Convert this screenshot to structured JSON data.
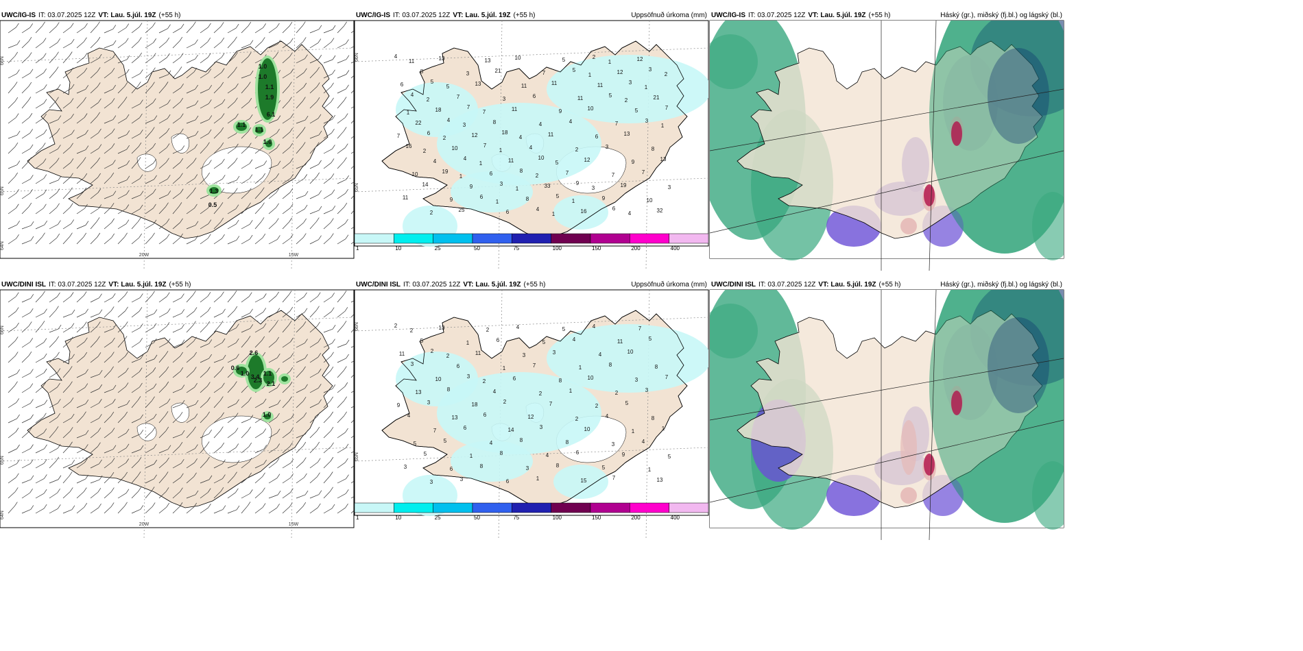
{
  "panels": [
    {
      "model": "UWC/IG-IS",
      "it": "IT: 03.07.2025 12Z",
      "vt_label": "VT:",
      "vt": "Lau. 5.júl. 19Z",
      "lead": "(+55 h)",
      "right_title": "",
      "kind": "wind",
      "lat_labels": [
        "66N",
        "65N",
        "64N"
      ],
      "lon_labels": [
        "20W",
        "15W"
      ],
      "precip_values": [
        "1.0",
        "1.0",
        "1.1",
        "1.9",
        "6.1",
        "1.1",
        "1.1",
        "1.0",
        "1.3",
        "0.5"
      ]
    },
    {
      "model": "UWC/IG-IS",
      "it": "IT: 03.07.2025 12Z",
      "vt_label": "VT:",
      "vt": "Lau. 5.júl. 19Z",
      "lead": "(+55 h)",
      "right_title": "Uppsöfnuð úrkoma (mm)",
      "kind": "precip",
      "lat_labels": [
        "66N",
        "65N"
      ],
      "lon_labels": [],
      "precip_values": [
        "4",
        "5",
        "7",
        "18",
        "10",
        "9",
        "6",
        "3",
        "4",
        "4",
        "7",
        "8",
        "5",
        "2",
        "3",
        "7",
        "6",
        "4",
        "3",
        "4",
        "5",
        "5",
        "3",
        "16",
        "19",
        "6",
        "10",
        "11",
        "10",
        "13",
        "13",
        "14",
        "25",
        "21",
        "6",
        "4",
        "3",
        "7",
        "11",
        "13",
        "13",
        "11",
        "11",
        "12",
        "19",
        "32",
        "8",
        "7",
        "8",
        "4",
        "7",
        "9",
        "12",
        "6",
        "18",
        "12",
        "11",
        "33",
        "16",
        "12",
        "21",
        "22",
        "10",
        "6",
        "8",
        "5",
        "11",
        "5",
        "7",
        "4",
        "9",
        "6",
        "7",
        "11",
        "7",
        "8",
        "10",
        "9",
        "13",
        "11",
        "9",
        "6",
        "9",
        "3",
        "2",
        "3",
        "3",
        "4",
        "2",
        "7",
        "10",
        "11",
        "5",
        "7",
        "4",
        "5",
        "3",
        "4",
        "2",
        "2",
        "3",
        "1",
        "2",
        "1",
        "1",
        "1",
        "1",
        "2",
        "1",
        "1",
        "1",
        "1",
        "2",
        "1",
        "2",
        "1",
        "1"
      ]
    },
    {
      "model": "UWC/IG-IS",
      "it": "IT: 03.07.2025 12Z",
      "vt_label": "VT:",
      "vt": "Lau. 5.júl. 19Z",
      "lead": "(+55 h)",
      "right_title": "Háský (gr.), miðský (fj.bl.) og lágský (bl.)",
      "kind": "cloud",
      "lat_labels": [],
      "lon_labels": [],
      "precip_values": []
    },
    {
      "model": "UWC/DINI ISL",
      "it": "IT: 03.07.2025 12Z",
      "vt_label": "VT:",
      "vt": "Lau. 5.júl. 19Z",
      "lead": "(+55 h)",
      "right_title": "",
      "kind": "wind",
      "lat_labels": [
        "66N",
        "65N",
        "64N"
      ],
      "lon_labels": [
        "20W",
        "15W"
      ],
      "precip_values": [
        "2.6",
        "0.6",
        "1.0",
        "3.4",
        "1.1",
        "2.3",
        "2.1",
        "1.0"
      ]
    },
    {
      "model": "UWC/DINI ISL",
      "it": "IT: 03.07.2025 12Z",
      "vt_label": "VT:",
      "vt": "Lau. 5.júl. 19Z",
      "lead": "(+55 h)",
      "right_title": "Uppsöfnuð úrkoma (mm)",
      "kind": "precip",
      "lat_labels": [
        "66N",
        "65N"
      ],
      "lon_labels": [],
      "precip_values": [
        "2",
        "2",
        "3",
        "2",
        "3",
        "6",
        "7",
        "5",
        "3",
        "8",
        "6",
        "8",
        "8",
        "4",
        "10",
        "7",
        "3",
        "6",
        "8",
        "1",
        "4",
        "8",
        "3",
        "4",
        "5",
        "8",
        "4",
        "3",
        "10",
        "5",
        "1",
        "5",
        "3",
        "6",
        "7",
        "1",
        "4",
        "4",
        "3",
        "13",
        "11",
        "6",
        "7",
        "10",
        "9",
        "13",
        "5",
        "6",
        "4",
        "12",
        "8",
        "5",
        "7",
        "11",
        "10",
        "18",
        "14",
        "4",
        "15",
        "11",
        "8",
        "13",
        "13",
        "4",
        "3",
        "5",
        "4",
        "3",
        "9",
        "7",
        "1",
        "6",
        "5",
        "1",
        "2",
        "8",
        "5",
        "6",
        "2",
        "3",
        "8",
        "2",
        "1",
        "5",
        "3",
        "1",
        "1",
        "2",
        "2",
        "3",
        "1",
        "2",
        "2",
        "2"
      ]
    },
    {
      "model": "UWC/DINI ISL",
      "it": "IT: 03.07.2025 12Z",
      "vt_label": "VT:",
      "vt": "Lau. 5.júl. 19Z",
      "lead": "(+55 h)",
      "right_title": "Háský (gr.), miðský (fj.bl.) og lágský (bl.)",
      "kind": "cloud",
      "lat_labels": [],
      "lon_labels": [],
      "precip_values": []
    }
  ],
  "legend": {
    "ticks": [
      "1",
      "10",
      "25",
      "50",
      "75",
      "100",
      "150",
      "200",
      "400"
    ],
    "colors": [
      "#c8f7f7",
      "#00eeee",
      "#00c0ee",
      "#3060ee",
      "#2020b0",
      "#700050",
      "#b00090",
      "#ff00cc",
      "#f2b8f0"
    ]
  },
  "colors": {
    "land": "#f2e3d3",
    "ice": "#ffffff",
    "border": "#000000",
    "precip_light": "#c8f7f7",
    "cloud_high": "#39a87f",
    "cloud_mid": "#6a4fd6",
    "cloud_low": "#0b2e6e",
    "convective": "#b1124a",
    "wind_precip": "#1d7a2a"
  }
}
